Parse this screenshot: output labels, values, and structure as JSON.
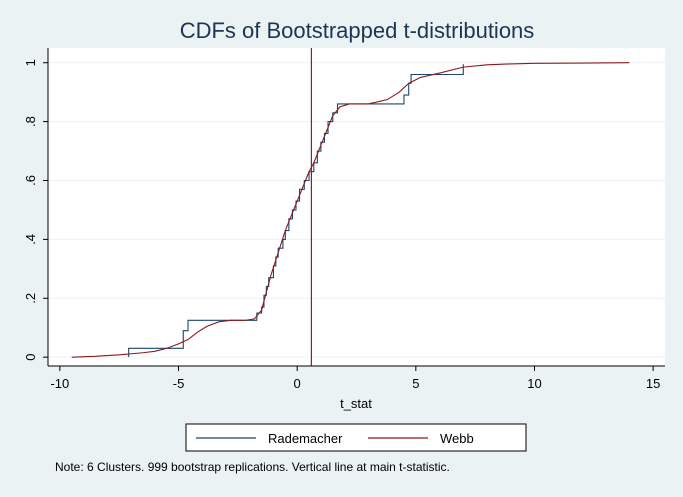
{
  "chart_data": {
    "type": "line",
    "title": "CDFs of Bootstrapped t-distributions",
    "xlabel": "t_stat",
    "ylabel": "",
    "xlim": [
      -10.5,
      15.5
    ],
    "ylim": [
      -0.03,
      1.05
    ],
    "x_ticks": [
      -10,
      -5,
      0,
      5,
      10,
      15
    ],
    "x_tick_labels": [
      "-10",
      "-5",
      "0",
      "5",
      "10",
      "15"
    ],
    "y_ticks": [
      0,
      0.2,
      0.4,
      0.6,
      0.8,
      1
    ],
    "y_tick_labels": [
      "0",
      ".2",
      ".4",
      ".6",
      ".8",
      "1"
    ],
    "grid": "horizontal",
    "legend_position": "bottom",
    "vertical_line": {
      "x": 0.6,
      "color": "#8b1a4a"
    },
    "series": [
      {
        "name": "Rademacher",
        "color": "#1a476f",
        "step": true,
        "points": [
          [
            -7.1,
            0.0
          ],
          [
            -7.1,
            0.03
          ],
          [
            -4.8,
            0.03
          ],
          [
            -4.8,
            0.09
          ],
          [
            -4.6,
            0.09
          ],
          [
            -4.6,
            0.125
          ],
          [
            -1.7,
            0.125
          ],
          [
            -1.7,
            0.15
          ],
          [
            -1.5,
            0.15
          ],
          [
            -1.5,
            0.17
          ],
          [
            -1.4,
            0.17
          ],
          [
            -1.4,
            0.21
          ],
          [
            -1.3,
            0.21
          ],
          [
            -1.3,
            0.24
          ],
          [
            -1.2,
            0.24
          ],
          [
            -1.2,
            0.27
          ],
          [
            -1.0,
            0.27
          ],
          [
            -1.0,
            0.31
          ],
          [
            -0.9,
            0.31
          ],
          [
            -0.9,
            0.34
          ],
          [
            -0.8,
            0.34
          ],
          [
            -0.8,
            0.37
          ],
          [
            -0.6,
            0.37
          ],
          [
            -0.6,
            0.4
          ],
          [
            -0.5,
            0.4
          ],
          [
            -0.5,
            0.43
          ],
          [
            -0.35,
            0.43
          ],
          [
            -0.35,
            0.47
          ],
          [
            -0.2,
            0.47
          ],
          [
            -0.2,
            0.5
          ],
          [
            -0.05,
            0.5
          ],
          [
            -0.05,
            0.53
          ],
          [
            0.1,
            0.53
          ],
          [
            0.1,
            0.57
          ],
          [
            0.3,
            0.57
          ],
          [
            0.3,
            0.6
          ],
          [
            0.5,
            0.6
          ],
          [
            0.5,
            0.63
          ],
          [
            0.7,
            0.63
          ],
          [
            0.7,
            0.66
          ],
          [
            0.85,
            0.66
          ],
          [
            0.85,
            0.7
          ],
          [
            1.0,
            0.7
          ],
          [
            1.0,
            0.73
          ],
          [
            1.15,
            0.73
          ],
          [
            1.15,
            0.76
          ],
          [
            1.3,
            0.76
          ],
          [
            1.3,
            0.8
          ],
          [
            1.5,
            0.8
          ],
          [
            1.5,
            0.83
          ],
          [
            1.7,
            0.83
          ],
          [
            1.7,
            0.86
          ],
          [
            4.5,
            0.86
          ],
          [
            4.5,
            0.89
          ],
          [
            4.7,
            0.89
          ],
          [
            4.7,
            0.93
          ],
          [
            4.8,
            0.93
          ],
          [
            4.8,
            0.96
          ],
          [
            7.0,
            0.96
          ],
          [
            7.0,
            0.995
          ]
        ]
      },
      {
        "name": "Webb",
        "color": "#8b1a1a",
        "step": false,
        "points": [
          [
            -9.5,
            0.0
          ],
          [
            -8.5,
            0.003
          ],
          [
            -7.5,
            0.008
          ],
          [
            -6.5,
            0.015
          ],
          [
            -6.0,
            0.02
          ],
          [
            -5.5,
            0.03
          ],
          [
            -5.0,
            0.045
          ],
          [
            -4.6,
            0.06
          ],
          [
            -4.2,
            0.085
          ],
          [
            -3.8,
            0.105
          ],
          [
            -3.3,
            0.12
          ],
          [
            -2.8,
            0.125
          ],
          [
            -2.2,
            0.125
          ],
          [
            -1.8,
            0.13
          ],
          [
            -1.5,
            0.16
          ],
          [
            -1.3,
            0.22
          ],
          [
            -1.1,
            0.28
          ],
          [
            -0.9,
            0.33
          ],
          [
            -0.7,
            0.38
          ],
          [
            -0.5,
            0.43
          ],
          [
            -0.3,
            0.47
          ],
          [
            -0.1,
            0.51
          ],
          [
            0.1,
            0.55
          ],
          [
            0.3,
            0.59
          ],
          [
            0.5,
            0.63
          ],
          [
            0.7,
            0.66
          ],
          [
            0.9,
            0.7
          ],
          [
            1.1,
            0.74
          ],
          [
            1.3,
            0.78
          ],
          [
            1.5,
            0.82
          ],
          [
            1.8,
            0.85
          ],
          [
            2.2,
            0.86
          ],
          [
            3.0,
            0.86
          ],
          [
            3.8,
            0.875
          ],
          [
            4.3,
            0.9
          ],
          [
            4.7,
            0.93
          ],
          [
            5.2,
            0.95
          ],
          [
            6.0,
            0.965
          ],
          [
            7.0,
            0.985
          ],
          [
            8.0,
            0.993
          ],
          [
            9.0,
            0.996
          ],
          [
            10.0,
            0.998
          ],
          [
            12.0,
            0.999
          ],
          [
            14.0,
            1.0
          ]
        ]
      }
    ]
  },
  "note": "Note: 6 Clusters.  999 bootstrap replications.  Vertical line at main t-statistic."
}
